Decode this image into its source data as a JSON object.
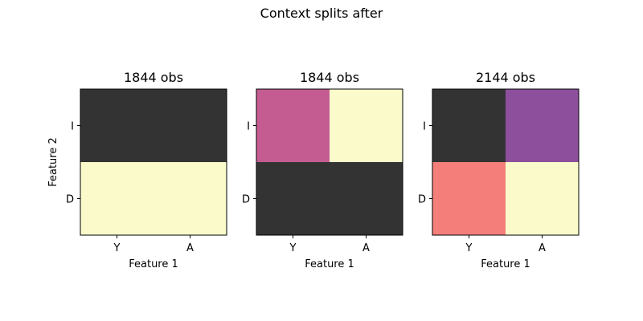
{
  "chart_data": {
    "type": "heatmap",
    "title": "Context splits after",
    "palette": {
      "dark": "#333333",
      "cream": "#fafacb",
      "pink": "#c45c92",
      "purple": "#8d4e9c",
      "salmon": "#f47e7a"
    },
    "panels": [
      {
        "title": "1844 obs",
        "xlabel": "Feature 1",
        "ylabel": "Feature 2",
        "x_categories": [
          "Y",
          "A"
        ],
        "y_categories": [
          "I",
          "D"
        ],
        "cells": [
          [
            "dark",
            "dark"
          ],
          [
            "cream",
            "cream"
          ]
        ]
      },
      {
        "title": "1844 obs",
        "xlabel": "Feature 1",
        "ylabel": "",
        "x_categories": [
          "Y",
          "A"
        ],
        "y_categories": [
          "I",
          "D"
        ],
        "cells": [
          [
            "pink",
            "cream"
          ],
          [
            "dark",
            "dark"
          ]
        ]
      },
      {
        "title": "2144 obs",
        "xlabel": "Feature 1",
        "ylabel": "",
        "x_categories": [
          "Y",
          "A"
        ],
        "y_categories": [
          "I",
          "D"
        ],
        "cells": [
          [
            "dark",
            "purple"
          ],
          [
            "salmon",
            "cream"
          ]
        ]
      }
    ]
  }
}
